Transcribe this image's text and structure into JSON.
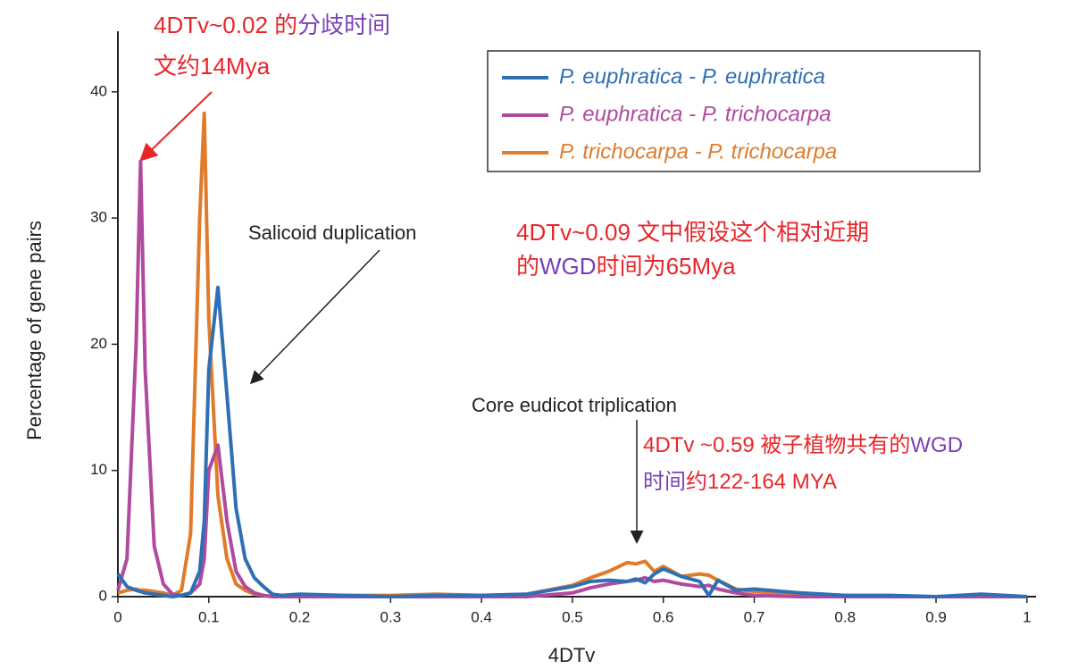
{
  "chart_data": {
    "type": "line",
    "xlabel": "4DTv",
    "ylabel": "Percentage of gene pairs",
    "x": [
      0,
      0.01,
      0.02,
      0.025,
      0.03,
      0.04,
      0.05,
      0.06,
      0.07,
      0.08,
      0.09,
      0.095,
      0.1,
      0.11,
      0.12,
      0.13,
      0.14,
      0.15,
      0.16,
      0.17,
      0.18,
      0.2,
      0.25,
      0.3,
      0.35,
      0.4,
      0.45,
      0.5,
      0.52,
      0.54,
      0.56,
      0.57,
      0.58,
      0.59,
      0.6,
      0.62,
      0.64,
      0.65,
      0.66,
      0.68,
      0.7,
      0.75,
      0.8,
      0.85,
      0.9,
      0.95,
      1
    ],
    "series": [
      {
        "name": "P. euphratica - P. euphratica",
        "color": "#2f6fb3",
        "values": [
          1.8,
          0.8,
          0.5,
          0.4,
          0.3,
          0.2,
          0.1,
          0,
          0.1,
          0.3,
          2,
          6,
          18,
          24.5,
          16,
          7,
          3,
          1.5,
          0.8,
          0.2,
          0.1,
          0.2,
          0.1,
          0,
          0.1,
          0.1,
          0.2,
          0.8,
          1.2,
          1.3,
          1.2,
          1.4,
          1.1,
          1.8,
          2.2,
          1.6,
          1.2,
          0.1,
          1.3,
          0.5,
          0.6,
          0.3,
          0.1,
          0.1,
          0,
          0.2,
          0
        ]
      },
      {
        "name": "P. euphratica - P. trichocarpa",
        "color": "#b04a9e",
        "values": [
          0.5,
          3,
          20,
          34.5,
          18,
          4,
          1,
          0.2,
          0.1,
          0.3,
          1,
          3,
          10,
          12,
          6,
          2,
          0.8,
          0.3,
          0.1,
          0,
          0,
          0,
          0,
          0,
          0,
          0,
          0,
          0.3,
          0.7,
          1,
          1.2,
          1.3,
          1.5,
          1.2,
          1.3,
          1,
          0.8,
          0.9,
          0.6,
          0.3,
          0.1,
          0,
          0,
          0,
          0,
          0,
          0
        ]
      },
      {
        "name": "P. trichocarpa - P. trichocarpa",
        "color": "#e07b2a",
        "values": [
          0.3,
          0.5,
          0.6,
          0.5,
          0.5,
          0.4,
          0.3,
          0.1,
          0.5,
          5,
          30,
          38.3,
          22,
          8,
          3,
          1,
          0.5,
          0.2,
          0.1,
          0,
          0,
          0,
          0.1,
          0.1,
          0.2,
          0.1,
          0.2,
          0.9,
          1.5,
          2,
          2.7,
          2.6,
          2.8,
          2,
          2.4,
          1.6,
          1.8,
          1.7,
          1.3,
          0.6,
          0.4,
          0.2,
          0.1,
          0,
          0,
          0,
          0
        ]
      }
    ],
    "xlim": [
      0,
      1.01
    ],
    "ylim": [
      0,
      44.8
    ],
    "xticks": [
      0,
      0.1,
      0.2,
      0.3,
      0.4,
      0.5,
      0.6,
      0.7,
      0.8,
      0.9,
      1
    ],
    "yticks": [
      0,
      10,
      20,
      30,
      40
    ],
    "annotations": [
      {
        "lines": [
          [
            {
              "text": "4DTv~0.02 的",
              "color": "#e8262a"
            },
            {
              "text": "分歧时间",
              "color": "#7a3fb8"
            }
          ],
          [
            {
              "text": "文约14Mya",
              "color": "#e8262a"
            }
          ]
        ]
      },
      {
        "lines": [
          [
            {
              "text": "Salicoid duplication",
              "color": "#222222"
            }
          ]
        ]
      },
      {
        "lines": [
          [
            {
              "text": "4DTv~0.09 文中假设这个相对近期",
              "color": "#e8262a"
            }
          ],
          [
            {
              "text": "的",
              "color": "#e8262a"
            },
            {
              "text": "WGD",
              "color": "#7a3fb8"
            },
            {
              "text": "时间为65Mya",
              "color": "#e8262a"
            }
          ]
        ]
      },
      {
        "lines": [
          [
            {
              "text": "Core eudicot triplication",
              "color": "#222222"
            }
          ]
        ]
      },
      {
        "lines": [
          [
            {
              "text": "4DTv ~0.59 被子植物共有的",
              "color": "#e8262a"
            },
            {
              "text": "WGD",
              "color": "#7a3fb8"
            }
          ],
          [
            {
              "text": "时间",
              "color": "#7a3fb8"
            },
            {
              "text": "约122-164 MYA",
              "color": "#e8262a"
            }
          ]
        ]
      }
    ]
  }
}
